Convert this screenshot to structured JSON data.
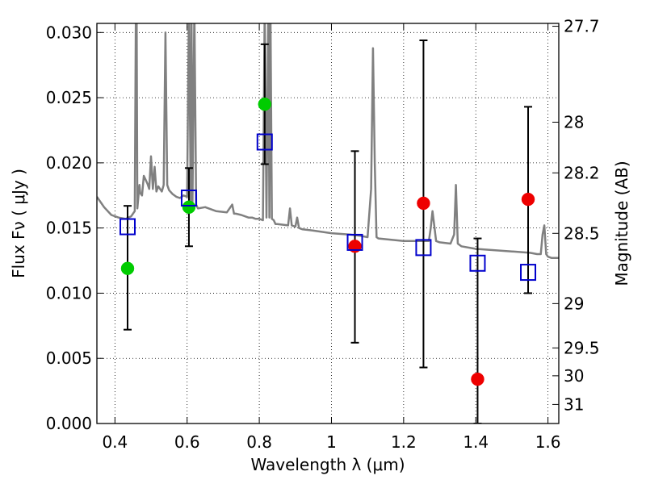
{
  "chart_data": {
    "type": "scatter",
    "xlabel": "Wavelength  λ (μm)",
    "ylabel": "Flux  Fν  ( μJy )",
    "ylabel_right": "Magnitude (AB)",
    "xlim": [
      0.35,
      1.63
    ],
    "ylim": [
      0.0,
      0.0307
    ],
    "grid": true,
    "x_ticks": [
      0.4,
      0.6,
      0.8,
      1.0,
      1.2,
      1.4,
      1.6
    ],
    "x_tick_labels": [
      "0.4",
      "0.6",
      "0.8",
      "1",
      "1.2",
      "1.4",
      "1.6"
    ],
    "y_ticks": [
      0.0,
      0.005,
      0.01,
      0.015,
      0.02,
      0.025,
      0.03
    ],
    "y_tick_labels": [
      "0.000",
      "0.005",
      "0.010",
      "0.015",
      "0.020",
      "0.025",
      "0.030"
    ],
    "right_ticks": [
      {
        "label": "27.7",
        "flux": 0.03048
      },
      {
        "label": "28",
        "flux": 0.02312
      },
      {
        "label": "28.2",
        "flux": 0.01923
      },
      {
        "label": "28.5",
        "flux": 0.01459
      },
      {
        "label": "29",
        "flux": 0.0092
      },
      {
        "label": "29.5",
        "flux": 0.0058
      },
      {
        "label": "30",
        "flux": 0.00366
      },
      {
        "label": "31",
        "flux": 0.00146
      }
    ],
    "series": [
      {
        "name": "model spectrum",
        "style": "line",
        "color": "#808080",
        "x": [
          0.35,
          0.37,
          0.39,
          0.41,
          0.43,
          0.445,
          0.455,
          0.458,
          0.46,
          0.462,
          0.465,
          0.468,
          0.47,
          0.475,
          0.48,
          0.49,
          0.495,
          0.5,
          0.505,
          0.51,
          0.515,
          0.52,
          0.53,
          0.535,
          0.54,
          0.545,
          0.55,
          0.56,
          0.57,
          0.58,
          0.59,
          0.6,
          0.605,
          0.61,
          0.612,
          0.615,
          0.62,
          0.625,
          0.63,
          0.65,
          0.68,
          0.71,
          0.725,
          0.73,
          0.735,
          0.75,
          0.77,
          0.78,
          0.79,
          0.8,
          0.81,
          0.815,
          0.82,
          0.825,
          0.828,
          0.831,
          0.835,
          0.84,
          0.845,
          0.85,
          0.88,
          0.885,
          0.89,
          0.9,
          0.905,
          0.91,
          0.92,
          0.95,
          1.0,
          1.05,
          1.08,
          1.1,
          1.11,
          1.115,
          1.12,
          1.125,
          1.13,
          1.2,
          1.25,
          1.27,
          1.275,
          1.28,
          1.29,
          1.3,
          1.33,
          1.34,
          1.345,
          1.35,
          1.36,
          1.4,
          1.5,
          1.55,
          1.57,
          1.58,
          1.585,
          1.59,
          1.595,
          1.6,
          1.61,
          1.63
        ],
        "y": [
          0.0174,
          0.0166,
          0.016,
          0.0158,
          0.0157,
          0.0159,
          0.0163,
          0.032,
          0.032,
          0.0165,
          0.0174,
          0.0183,
          0.0177,
          0.0175,
          0.019,
          0.0184,
          0.018,
          0.0205,
          0.018,
          0.0197,
          0.0178,
          0.0182,
          0.0178,
          0.0183,
          0.03,
          0.0183,
          0.0179,
          0.0176,
          0.0174,
          0.0173,
          0.0175,
          0.0174,
          0.032,
          0.017,
          0.032,
          0.017,
          0.032,
          0.0168,
          0.0165,
          0.0166,
          0.0163,
          0.0162,
          0.0168,
          0.0161,
          0.0161,
          0.016,
          0.0158,
          0.0158,
          0.0157,
          0.0157,
          0.0156,
          0.032,
          0.0158,
          0.032,
          0.0158,
          0.032,
          0.0157,
          0.0156,
          0.0153,
          0.0153,
          0.0152,
          0.0165,
          0.0152,
          0.0151,
          0.0158,
          0.015,
          0.0149,
          0.0148,
          0.0146,
          0.0145,
          0.0144,
          0.0143,
          0.018,
          0.0288,
          0.02,
          0.0143,
          0.0142,
          0.014,
          0.014,
          0.014,
          0.015,
          0.0163,
          0.014,
          0.0139,
          0.0138,
          0.0145,
          0.0183,
          0.0138,
          0.0136,
          0.0134,
          0.0132,
          0.0131,
          0.013,
          0.013,
          0.0145,
          0.0152,
          0.013,
          0.0128,
          0.0127,
          0.0127
        ]
      },
      {
        "name": "observed (blue squares)",
        "style": "square",
        "color": "#0000cc",
        "x": [
          0.435,
          0.605,
          0.815,
          1.065,
          1.255,
          1.405,
          1.545
        ],
        "y": [
          0.0151,
          0.0173,
          0.0216,
          0.0139,
          0.0135,
          0.0123,
          0.0116
        ],
        "yerr_low": [
          0.0072,
          0.0136,
          0.0199,
          0.0062,
          0.0043,
          0.0,
          0.01
        ],
        "yerr_high": [
          0.0167,
          0.0196,
          0.0291,
          0.0209,
          0.0294,
          0.0142,
          0.0243
        ]
      },
      {
        "name": "model photometry (green)",
        "style": "circle",
        "color": "#00cc00",
        "x": [
          0.435,
          0.605,
          0.815
        ],
        "y": [
          0.0119,
          0.0166,
          0.0245
        ]
      },
      {
        "name": "model photometry (red)",
        "style": "circle",
        "color": "#ee0000",
        "x": [
          1.065,
          1.255,
          1.405,
          1.545
        ],
        "y": [
          0.0136,
          0.0169,
          0.0034,
          0.0172
        ]
      }
    ]
  }
}
